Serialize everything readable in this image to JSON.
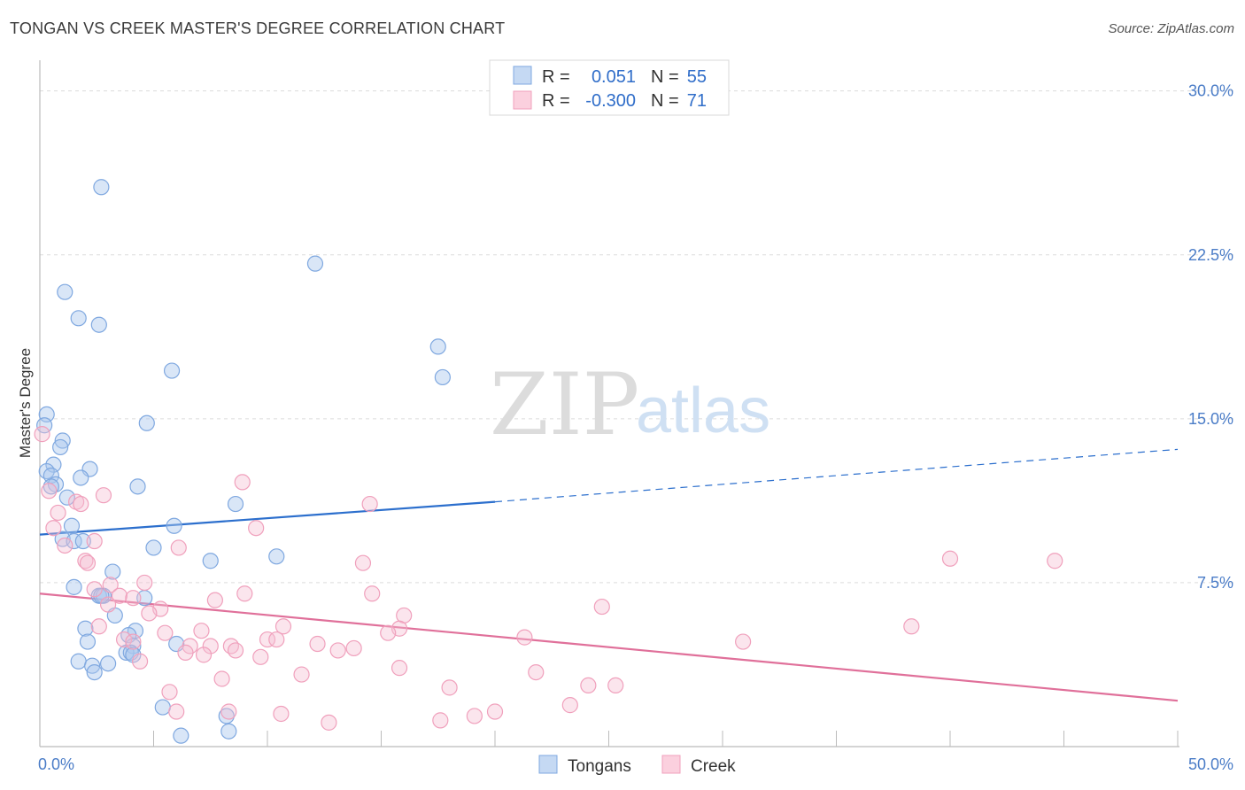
{
  "title": "TONGAN VS CREEK MASTER'S DEGREE CORRELATION CHART",
  "source": "Source: ZipAtlas.com",
  "watermark": {
    "zip": "ZIP",
    "atlas": "atlas"
  },
  "chart_data": {
    "type": "scatter",
    "ylabel": "Master's Degree",
    "xlim": [
      0,
      50
    ],
    "ylim": [
      0,
      31
    ],
    "y_ticks": [
      7.5,
      15.0,
      22.5,
      30.0
    ],
    "y_tick_labels": [
      "7.5%",
      "15.0%",
      "22.5%",
      "30.0%"
    ],
    "x_tick_labels": [
      "0.0%",
      "50.0%"
    ],
    "grid": "horizontal dashed",
    "legend_position": "top-center",
    "legend": [
      {
        "r_label": "R =",
        "r_value": "0.051",
        "n_label": "N =",
        "n_value": "55"
      },
      {
        "r_label": "R =",
        "r_value": "-0.300",
        "n_label": "N =",
        "n_value": "71"
      }
    ],
    "series": [
      {
        "name": "Tongans",
        "color": "#7fa8e0",
        "line_color": "#2c6fcd",
        "trend": {
          "x0": 0,
          "y0": 9.7,
          "x1": 20,
          "y1": 11.2,
          "dashed_to_x": 50,
          "dashed_to_y": 13.6
        },
        "points": [
          [
            2.7,
            25.6
          ],
          [
            12.1,
            22.1
          ],
          [
            1.1,
            20.8
          ],
          [
            1.7,
            19.6
          ],
          [
            2.6,
            19.3
          ],
          [
            17.5,
            18.3
          ],
          [
            5.8,
            17.2
          ],
          [
            17.7,
            16.9
          ],
          [
            0.3,
            15.2
          ],
          [
            4.7,
            14.8
          ],
          [
            0.2,
            14.7
          ],
          [
            1.0,
            14.0
          ],
          [
            0.9,
            13.7
          ],
          [
            0.6,
            12.9
          ],
          [
            2.2,
            12.7
          ],
          [
            0.3,
            12.6
          ],
          [
            0.5,
            12.4
          ],
          [
            1.8,
            12.3
          ],
          [
            0.7,
            12.0
          ],
          [
            0.5,
            11.9
          ],
          [
            4.3,
            11.9
          ],
          [
            1.2,
            11.4
          ],
          [
            8.6,
            11.1
          ],
          [
            1.4,
            10.1
          ],
          [
            5.9,
            10.1
          ],
          [
            1.0,
            9.5
          ],
          [
            1.5,
            9.4
          ],
          [
            1.9,
            9.4
          ],
          [
            5.0,
            9.1
          ],
          [
            10.4,
            8.7
          ],
          [
            7.5,
            8.5
          ],
          [
            3.2,
            8.0
          ],
          [
            1.5,
            7.3
          ],
          [
            2.6,
            6.9
          ],
          [
            2.8,
            6.9
          ],
          [
            4.6,
            6.8
          ],
          [
            3.3,
            6.0
          ],
          [
            2.0,
            5.4
          ],
          [
            4.2,
            5.3
          ],
          [
            3.9,
            5.1
          ],
          [
            2.1,
            4.8
          ],
          [
            6.0,
            4.7
          ],
          [
            4.1,
            4.6
          ],
          [
            3.8,
            4.3
          ],
          [
            4.0,
            4.3
          ],
          [
            1.7,
            3.9
          ],
          [
            3.0,
            3.8
          ],
          [
            2.3,
            3.7
          ],
          [
            2.4,
            3.4
          ],
          [
            5.4,
            1.8
          ],
          [
            8.2,
            1.4
          ],
          [
            6.2,
            0.5
          ],
          [
            8.3,
            0.7
          ],
          [
            4.1,
            4.2
          ],
          [
            2.7,
            6.9
          ]
        ]
      },
      {
        "name": "Creek",
        "color": "#f0a0bc",
        "line_color": "#e0709a",
        "trend": {
          "x0": 0,
          "y0": 7.0,
          "x1": 50,
          "y1": 2.1
        },
        "points": [
          [
            0.1,
            14.3
          ],
          [
            8.9,
            12.1
          ],
          [
            0.4,
            11.7
          ],
          [
            2.8,
            11.5
          ],
          [
            14.5,
            11.1
          ],
          [
            1.6,
            11.2
          ],
          [
            1.8,
            11.1
          ],
          [
            0.8,
            10.7
          ],
          [
            0.6,
            10.0
          ],
          [
            9.5,
            10.0
          ],
          [
            1.1,
            9.2
          ],
          [
            2.4,
            9.4
          ],
          [
            6.1,
            9.1
          ],
          [
            2.0,
            8.5
          ],
          [
            2.1,
            8.4
          ],
          [
            14.2,
            8.4
          ],
          [
            40.0,
            8.6
          ],
          [
            44.6,
            8.5
          ],
          [
            4.6,
            7.5
          ],
          [
            3.1,
            7.4
          ],
          [
            2.4,
            7.2
          ],
          [
            9.0,
            7.0
          ],
          [
            14.6,
            7.0
          ],
          [
            3.5,
            6.9
          ],
          [
            4.1,
            6.8
          ],
          [
            7.7,
            6.7
          ],
          [
            3.0,
            6.5
          ],
          [
            24.7,
            6.4
          ],
          [
            5.3,
            6.3
          ],
          [
            4.8,
            6.1
          ],
          [
            16.0,
            6.0
          ],
          [
            2.6,
            5.5
          ],
          [
            10.7,
            5.5
          ],
          [
            15.8,
            5.4
          ],
          [
            38.3,
            5.5
          ],
          [
            7.1,
            5.3
          ],
          [
            15.3,
            5.2
          ],
          [
            5.5,
            5.2
          ],
          [
            21.3,
            5.0
          ],
          [
            3.7,
            4.9
          ],
          [
            10.0,
            4.9
          ],
          [
            10.4,
            4.9
          ],
          [
            4.1,
            4.8
          ],
          [
            12.2,
            4.7
          ],
          [
            30.9,
            4.8
          ],
          [
            6.6,
            4.6
          ],
          [
            7.5,
            4.6
          ],
          [
            8.4,
            4.6
          ],
          [
            13.8,
            4.5
          ],
          [
            8.6,
            4.4
          ],
          [
            13.1,
            4.4
          ],
          [
            6.4,
            4.3
          ],
          [
            7.2,
            4.2
          ],
          [
            9.7,
            4.1
          ],
          [
            4.4,
            3.9
          ],
          [
            15.8,
            3.6
          ],
          [
            21.8,
            3.4
          ],
          [
            11.5,
            3.3
          ],
          [
            8.0,
            3.1
          ],
          [
            24.1,
            2.8
          ],
          [
            25.3,
            2.8
          ],
          [
            18.0,
            2.7
          ],
          [
            5.7,
            2.5
          ],
          [
            23.3,
            1.9
          ],
          [
            6.0,
            1.6
          ],
          [
            8.3,
            1.6
          ],
          [
            10.6,
            1.5
          ],
          [
            20.0,
            1.6
          ],
          [
            19.1,
            1.4
          ],
          [
            17.6,
            1.2
          ],
          [
            12.7,
            1.1
          ]
        ]
      }
    ]
  }
}
